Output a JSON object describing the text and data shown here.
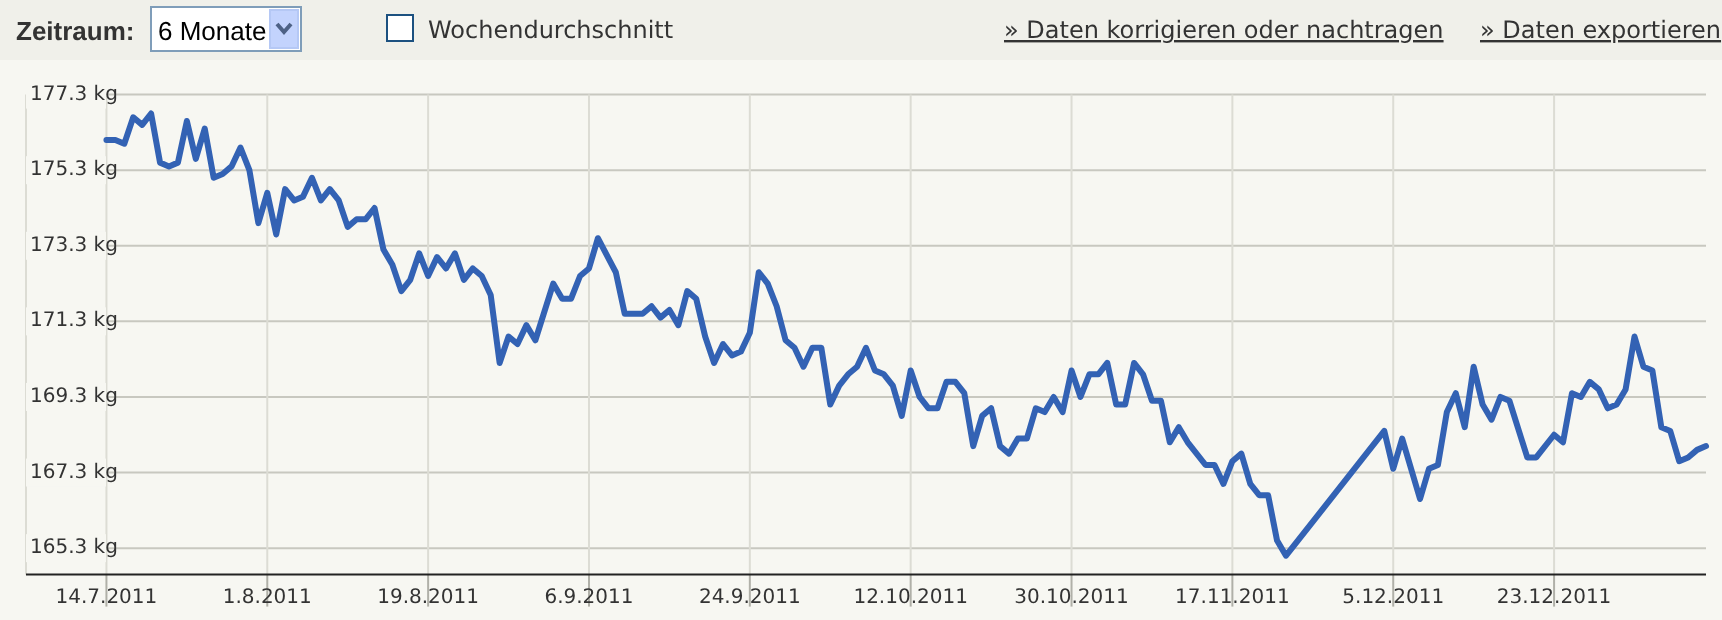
{
  "chart_data": {
    "type": "line",
    "annotations": [
      "Zeitraum:",
      "6 Monate",
      "Wochendurchschnitt",
      "» Daten korrigieren oder nachtragen",
      "» Daten exportieren"
    ],
    "x": [
      "2011-07-14",
      "2011-07-15",
      "2011-07-16",
      "2011-07-17",
      "2011-07-18",
      "2011-07-19",
      "2011-07-20",
      "2011-07-21",
      "2011-07-22",
      "2011-07-23",
      "2011-07-24",
      "2011-07-25",
      "2011-07-26",
      "2011-07-27",
      "2011-07-28",
      "2011-07-29",
      "2011-07-30",
      "2011-07-31",
      "2011-08-01",
      "2011-08-02",
      "2011-08-03",
      "2011-08-04",
      "2011-08-05",
      "2011-08-06",
      "2011-08-07",
      "2011-08-08",
      "2011-08-09",
      "2011-08-10",
      "2011-08-11",
      "2011-08-12",
      "2011-08-13",
      "2011-08-14",
      "2011-08-15",
      "2011-08-16",
      "2011-08-17",
      "2011-08-18",
      "2011-08-19",
      "2011-08-20",
      "2011-08-21",
      "2011-08-22",
      "2011-08-23",
      "2011-08-24",
      "2011-08-25",
      "2011-08-26",
      "2011-08-27",
      "2011-08-28",
      "2011-08-29",
      "2011-08-30",
      "2011-08-31",
      "2011-09-02",
      "2011-09-03",
      "2011-09-04",
      "2011-09-05",
      "2011-09-06",
      "2011-09-07",
      "2011-09-09",
      "2011-09-10",
      "2011-09-11",
      "2011-09-12",
      "2011-09-13",
      "2011-09-14",
      "2011-09-15",
      "2011-09-16",
      "2011-09-17",
      "2011-09-18",
      "2011-09-19",
      "2011-09-20",
      "2011-09-21",
      "2011-09-22",
      "2011-09-23",
      "2011-09-24",
      "2011-09-25",
      "2011-09-26",
      "2011-09-27",
      "2011-09-28",
      "2011-09-29",
      "2011-09-30",
      "2011-10-01",
      "2011-10-02",
      "2011-10-03",
      "2011-10-04",
      "2011-10-05",
      "2011-10-06",
      "2011-10-07",
      "2011-10-08",
      "2011-10-09",
      "2011-10-10",
      "2011-10-11",
      "2011-10-12",
      "2011-10-13",
      "2011-10-14",
      "2011-10-15",
      "2011-10-16",
      "2011-10-17",
      "2011-10-18",
      "2011-10-19",
      "2011-10-20",
      "2011-10-21",
      "2011-10-22",
      "2011-10-23",
      "2011-10-24",
      "2011-10-25",
      "2011-10-26",
      "2011-10-27",
      "2011-10-28",
      "2011-10-29",
      "2011-10-30",
      "2011-10-31",
      "2011-11-01",
      "2011-11-02",
      "2011-11-03",
      "2011-11-04",
      "2011-11-05",
      "2011-11-06",
      "2011-11-07",
      "2011-11-08",
      "2011-11-09",
      "2011-11-10",
      "2011-11-11",
      "2011-11-12",
      "2011-11-14",
      "2011-11-15",
      "2011-11-16",
      "2011-11-17",
      "2011-11-18",
      "2011-11-19",
      "2011-11-20",
      "2011-11-21",
      "2011-11-22",
      "2011-11-23",
      "2011-12-04",
      "2011-12-05",
      "2011-12-06",
      "2011-12-08",
      "2011-12-09",
      "2011-12-10",
      "2011-12-11",
      "2011-12-12",
      "2011-12-13",
      "2011-12-14",
      "2011-12-15",
      "2011-12-16",
      "2011-12-17",
      "2011-12-18",
      "2011-12-20",
      "2011-12-21",
      "2011-12-23",
      "2011-12-24",
      "2011-12-25",
      "2011-12-26",
      "2011-12-27",
      "2011-12-28",
      "2011-12-29",
      "2011-12-30",
      "2011-12-31",
      "2012-01-01",
      "2012-01-02",
      "2012-01-03",
      "2012-01-04",
      "2012-01-05",
      "2012-01-06",
      "2012-01-07",
      "2012-01-08",
      "2012-01-09"
    ],
    "series": [
      {
        "color": "#3362b4",
        "values": [
          176.1,
          176.1,
          176.0,
          176.7,
          176.5,
          176.8,
          175.5,
          175.4,
          175.5,
          176.6,
          175.6,
          176.4,
          175.1,
          175.2,
          175.4,
          175.9,
          175.3,
          173.9,
          174.7,
          173.6,
          174.8,
          174.5,
          174.6,
          175.1,
          174.5,
          174.8,
          174.5,
          173.8,
          174.0,
          174.0,
          174.3,
          173.2,
          172.8,
          172.1,
          172.4,
          173.1,
          172.5,
          173.0,
          172.7,
          173.1,
          172.4,
          172.7,
          172.5,
          172.0,
          170.2,
          170.9,
          170.7,
          171.2,
          170.8,
          172.3,
          171.9,
          171.9,
          172.5,
          172.7,
          173.5,
          172.6,
          171.5,
          171.5,
          171.5,
          171.7,
          171.4,
          171.6,
          171.2,
          172.1,
          171.9,
          170.9,
          170.2,
          170.7,
          170.4,
          170.5,
          171.0,
          172.6,
          172.3,
          171.7,
          170.8,
          170.6,
          170.1,
          170.6,
          170.6,
          169.1,
          169.6,
          169.9,
          170.1,
          170.6,
          170.0,
          169.9,
          169.6,
          168.8,
          170.0,
          169.3,
          169.0,
          169.0,
          169.7,
          169.7,
          169.4,
          168.0,
          168.8,
          169.0,
          168.0,
          167.8,
          168.2,
          168.2,
          169.0,
          168.9,
          169.3,
          168.9,
          170.0,
          169.3,
          169.9,
          169.9,
          170.2,
          169.1,
          169.1,
          170.2,
          169.9,
          169.2,
          169.2,
          168.1,
          168.5,
          168.1,
          167.5,
          167.5,
          167.0,
          167.6,
          167.8,
          167.0,
          166.7,
          166.7,
          165.5,
          165.1,
          168.4,
          167.4,
          168.2,
          166.6,
          167.4,
          167.5,
          168.9,
          169.4,
          168.5,
          170.1,
          169.1,
          168.7,
          169.3,
          169.2,
          167.7,
          167.7,
          168.3,
          168.1,
          169.4,
          169.3,
          169.7,
          169.5,
          169.0,
          169.1,
          169.5,
          170.9,
          170.1,
          170.0,
          168.5,
          168.4,
          167.6,
          167.7,
          167.9,
          168.0
        ]
      }
    ],
    "xlim": [
      "2011-07-05",
      "2012-01-09"
    ],
    "xticks": [
      {
        "value": "2011-07-14",
        "label": "14.7.2011"
      },
      {
        "value": "2011-08-01",
        "label": "1.8.2011"
      },
      {
        "value": "2011-08-19",
        "label": "19.8.2011"
      },
      {
        "value": "2011-09-06",
        "label": "6.9.2011"
      },
      {
        "value": "2011-09-24",
        "label": "24.9.2011"
      },
      {
        "value": "2011-10-12",
        "label": "12.10.2011"
      },
      {
        "value": "2011-10-30",
        "label": "30.10.2011"
      },
      {
        "value": "2011-11-17",
        "label": "17.11.2011"
      },
      {
        "value": "2011-12-05",
        "label": "5.12.2011"
      },
      {
        "value": "2011-12-23",
        "label": "23.12.2011"
      }
    ],
    "ylim": [
      164.6,
      177.3
    ],
    "yticks": [
      {
        "value": 165.3,
        "label": "165.3 kg"
      },
      {
        "value": 167.3,
        "label": "167.3 kg"
      },
      {
        "value": 169.3,
        "label": "169.3 kg"
      },
      {
        "value": 171.3,
        "label": "171.3 kg"
      },
      {
        "value": 173.3,
        "label": "173.3 kg"
      },
      {
        "value": 175.3,
        "label": "175.3 kg"
      },
      {
        "value": 177.3,
        "label": "177.3 kg"
      }
    ],
    "grid": true,
    "marker": "none",
    "line_style": "solid"
  }
}
